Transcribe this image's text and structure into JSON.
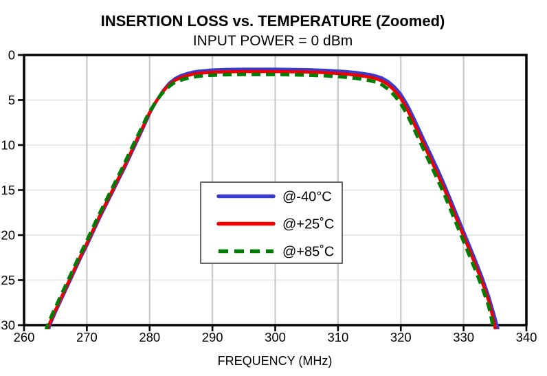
{
  "page": {
    "background": "#ffffff"
  },
  "chart_data": {
    "type": "line",
    "title": "INSERTION LOSS vs. TEMPERATURE (Zoomed)",
    "subtitle": "INPUT POWER = 0 dBm",
    "xlabel": "FREQUENCY (MHz)",
    "ylabel": "",
    "x_axis": {
      "min": 260,
      "max": 340,
      "ticks": [
        260,
        270,
        280,
        290,
        300,
        310,
        320,
        330,
        340
      ],
      "gridlines": [
        270,
        280,
        290,
        300,
        310,
        320,
        330
      ]
    },
    "y_axis": {
      "min": 0,
      "max": 30,
      "inverted": true,
      "ticks": [
        0,
        5,
        10,
        15,
        20,
        25,
        30
      ],
      "gridlines": [
        5,
        10,
        15,
        20,
        25
      ]
    },
    "grid": "on",
    "legend_position": "center",
    "colors": {
      "axis": "#000000",
      "grid_vertical": "#c9c9c9",
      "grid_horizontal": "#e3e3e3",
      "legend_border": "#444444",
      "legend_fill": "#ffffff"
    },
    "series": [
      {
        "name": "@-40°C",
        "color": "#3a3acd",
        "style": "solid",
        "points": [
          [
            263.8,
            30.8
          ],
          [
            264.1,
            30.0
          ],
          [
            265.1,
            28.4
          ],
          [
            266.1,
            26.9
          ],
          [
            267.1,
            25.4
          ],
          [
            268.1,
            23.9
          ],
          [
            269.1,
            22.4
          ],
          [
            270.1,
            21.0
          ],
          [
            271.1,
            19.5
          ],
          [
            272.1,
            18.0
          ],
          [
            273.1,
            16.6
          ],
          [
            274.1,
            15.2
          ],
          [
            275.1,
            13.8
          ],
          [
            276.1,
            12.4
          ],
          [
            277.1,
            10.9
          ],
          [
            278.1,
            9.4
          ],
          [
            279.1,
            7.9
          ],
          [
            280.1,
            6.35
          ],
          [
            281.1,
            5.1
          ],
          [
            282.1,
            4.0
          ],
          [
            283.1,
            3.15
          ],
          [
            284.1,
            2.6
          ],
          [
            285,
            2.28
          ],
          [
            286,
            2.05
          ],
          [
            287,
            1.88
          ],
          [
            288,
            1.78
          ],
          [
            290,
            1.66
          ],
          [
            292,
            1.6
          ],
          [
            295,
            1.57
          ],
          [
            300,
            1.57
          ],
          [
            305,
            1.62
          ],
          [
            308,
            1.7
          ],
          [
            311,
            1.82
          ],
          [
            313,
            1.95
          ],
          [
            315,
            2.15
          ],
          [
            316,
            2.32
          ],
          [
            317,
            2.55
          ],
          [
            318,
            2.95
          ],
          [
            319,
            3.55
          ],
          [
            320,
            4.35
          ],
          [
            321,
            5.5
          ],
          [
            322,
            6.9
          ],
          [
            323,
            8.4
          ],
          [
            324,
            9.9
          ],
          [
            325,
            11.4
          ],
          [
            326,
            12.9
          ],
          [
            327,
            14.5
          ],
          [
            328,
            16.2
          ],
          [
            329,
            17.9
          ],
          [
            330,
            19.6
          ],
          [
            331,
            21.3
          ],
          [
            332,
            23.0
          ],
          [
            333,
            24.8
          ],
          [
            334,
            26.8
          ],
          [
            335,
            29.2
          ],
          [
            335.6,
            30.8
          ]
        ]
      },
      {
        "name": "@+25˚C",
        "color": "#ee0000",
        "style": "solid",
        "points": [
          [
            263.6,
            30.8
          ],
          [
            263.95,
            30.0
          ],
          [
            264.95,
            28.4
          ],
          [
            265.95,
            26.9
          ],
          [
            266.95,
            25.4
          ],
          [
            267.95,
            23.9
          ],
          [
            268.95,
            22.4
          ],
          [
            269.95,
            21.0
          ],
          [
            270.95,
            19.5
          ],
          [
            271.95,
            18.0
          ],
          [
            272.95,
            16.6
          ],
          [
            273.95,
            15.2
          ],
          [
            274.95,
            13.8
          ],
          [
            275.95,
            12.4
          ],
          [
            276.95,
            10.9
          ],
          [
            277.95,
            9.4
          ],
          [
            278.95,
            7.95
          ],
          [
            279.95,
            6.45
          ],
          [
            280.95,
            5.25
          ],
          [
            281.95,
            4.2
          ],
          [
            282.95,
            3.4
          ],
          [
            283.95,
            2.85
          ],
          [
            285,
            2.5
          ],
          [
            286,
            2.28
          ],
          [
            287,
            2.12
          ],
          [
            288,
            2.02
          ],
          [
            290,
            1.92
          ],
          [
            292,
            1.87
          ],
          [
            295,
            1.84
          ],
          [
            300,
            1.84
          ],
          [
            305,
            1.89
          ],
          [
            308,
            1.97
          ],
          [
            311,
            2.1
          ],
          [
            313,
            2.24
          ],
          [
            315,
            2.45
          ],
          [
            316,
            2.62
          ],
          [
            317,
            2.88
          ],
          [
            318,
            3.3
          ],
          [
            319,
            3.95
          ],
          [
            320,
            4.8
          ],
          [
            321,
            6.0
          ],
          [
            322,
            7.45
          ],
          [
            323,
            8.95
          ],
          [
            324,
            10.45
          ],
          [
            325,
            11.95
          ],
          [
            326,
            13.45
          ],
          [
            327,
            15.0
          ],
          [
            328,
            16.7
          ],
          [
            329,
            18.4
          ],
          [
            330,
            20.1
          ],
          [
            331,
            21.8
          ],
          [
            332,
            23.5
          ],
          [
            333,
            25.3
          ],
          [
            334,
            27.3
          ],
          [
            334.8,
            29.5
          ],
          [
            335.15,
            30.8
          ]
        ]
      },
      {
        "name": "@+85˚C",
        "color": "#007d00",
        "style": "dashed",
        "points": [
          [
            263.4,
            30.8
          ],
          [
            263.75,
            30.0
          ],
          [
            264.75,
            28.4
          ],
          [
            265.75,
            26.9
          ],
          [
            266.75,
            25.4
          ],
          [
            267.75,
            23.9
          ],
          [
            268.75,
            22.4
          ],
          [
            269.75,
            21.0
          ],
          [
            270.75,
            19.5
          ],
          [
            271.75,
            18.0
          ],
          [
            272.75,
            16.6
          ],
          [
            273.75,
            15.2
          ],
          [
            274.75,
            13.8
          ],
          [
            275.75,
            12.4
          ],
          [
            276.75,
            10.9
          ],
          [
            277.75,
            9.45
          ],
          [
            278.75,
            8.05
          ],
          [
            279.75,
            6.6
          ],
          [
            280.75,
            5.45
          ],
          [
            281.75,
            4.45
          ],
          [
            282.75,
            3.7
          ],
          [
            283.75,
            3.15
          ],
          [
            285,
            2.78
          ],
          [
            286,
            2.58
          ],
          [
            287,
            2.44
          ],
          [
            288,
            2.34
          ],
          [
            290,
            2.24
          ],
          [
            292,
            2.19
          ],
          [
            295,
            2.16
          ],
          [
            300,
            2.17
          ],
          [
            305,
            2.23
          ],
          [
            308,
            2.31
          ],
          [
            311,
            2.45
          ],
          [
            313,
            2.6
          ],
          [
            315,
            2.83
          ],
          [
            316,
            3.0
          ],
          [
            317,
            3.3
          ],
          [
            318,
            3.8
          ],
          [
            319,
            4.5
          ],
          [
            320,
            5.4
          ],
          [
            321,
            6.6
          ],
          [
            322,
            8.05
          ],
          [
            323,
            9.55
          ],
          [
            324,
            11.05
          ],
          [
            325,
            12.55
          ],
          [
            326,
            14.05
          ],
          [
            327,
            15.6
          ],
          [
            328,
            17.3
          ],
          [
            329,
            19.0
          ],
          [
            330,
            20.7
          ],
          [
            331,
            22.4
          ],
          [
            332,
            24.1
          ],
          [
            333,
            25.9
          ],
          [
            334,
            27.9
          ],
          [
            334.5,
            29.5
          ],
          [
            334.85,
            30.8
          ]
        ]
      }
    ]
  }
}
